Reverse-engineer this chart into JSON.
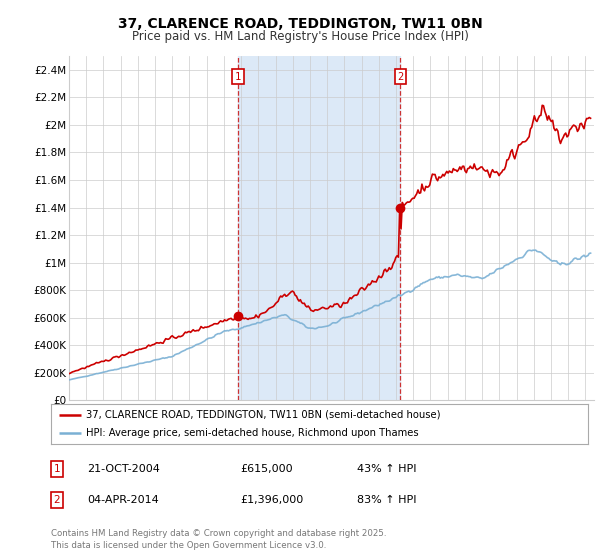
{
  "title": "37, CLARENCE ROAD, TEDDINGTON, TW11 0BN",
  "subtitle": "Price paid vs. HM Land Registry's House Price Index (HPI)",
  "ylabel_ticks": [
    "£0",
    "£200K",
    "£400K",
    "£600K",
    "£800K",
    "£1M",
    "£1.2M",
    "£1.4M",
    "£1.6M",
    "£1.8M",
    "£2M",
    "£2.2M",
    "£2.4M"
  ],
  "ytick_values": [
    0,
    200000,
    400000,
    600000,
    800000,
    1000000,
    1200000,
    1400000,
    1600000,
    1800000,
    2000000,
    2200000,
    2400000
  ],
  "ylim": [
    0,
    2500000
  ],
  "xlim_start": 1995.0,
  "xlim_end": 2025.5,
  "sale1_year": 2004.81,
  "sale1_price": 615000,
  "sale2_year": 2014.25,
  "sale2_price": 1396000,
  "shade_color": "#dce9f7",
  "vline_color": "#cc3333",
  "line_color_property": "#cc0000",
  "line_color_hpi": "#7ab0d4",
  "legend_label_property": "37, CLARENCE ROAD, TEDDINGTON, TW11 0BN (semi-detached house)",
  "legend_label_hpi": "HPI: Average price, semi-detached house, Richmond upon Thames",
  "annotation1_date": "21-OCT-2004",
  "annotation1_price": "£615,000",
  "annotation1_hpi": "43% ↑ HPI",
  "annotation2_date": "04-APR-2014",
  "annotation2_price": "£1,396,000",
  "annotation2_hpi": "83% ↑ HPI",
  "footer": "Contains HM Land Registry data © Crown copyright and database right 2025.\nThis data is licensed under the Open Government Licence v3.0.",
  "background_color": "#ffffff",
  "grid_color": "#cccccc"
}
